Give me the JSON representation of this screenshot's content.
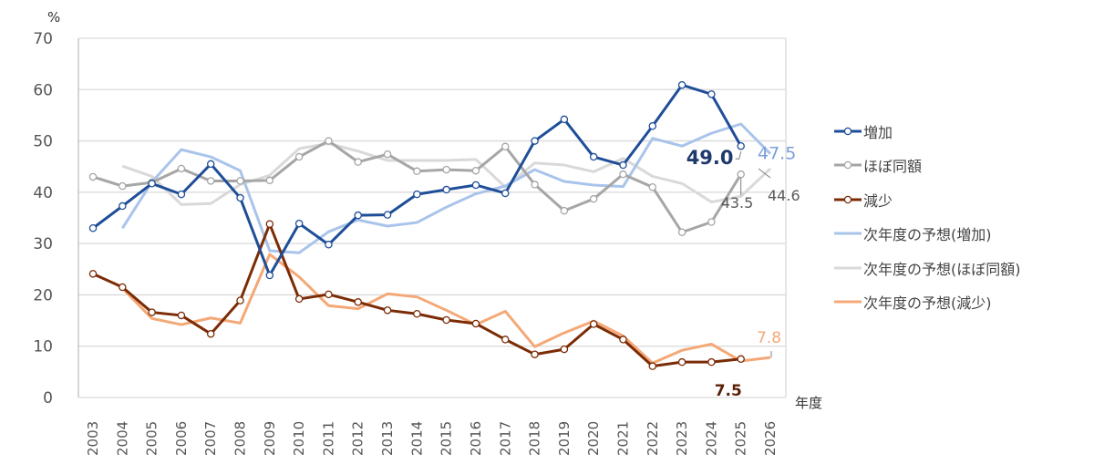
{
  "chart_data": {
    "type": "line",
    "title": "",
    "xlabel": "年度",
    "ylabel": "%",
    "ylim": [
      0,
      70
    ],
    "yticks": [
      "0",
      "10",
      "20",
      "30",
      "40",
      "50",
      "60",
      "70"
    ],
    "categories": [
      "2003",
      "2004",
      "2005",
      "2006",
      "2007",
      "2008",
      "2009",
      "2010",
      "2011",
      "2012",
      "2013",
      "2014",
      "2015",
      "2016",
      "2017",
      "2018",
      "2019",
      "2020",
      "2021",
      "2022",
      "2023",
      "2024",
      "2025",
      "2026"
    ],
    "grid": true,
    "legend_position": "right",
    "series": [
      {
        "name": "増加",
        "color": "#1F4E98",
        "markers": true,
        "width": 3,
        "values": [
          33.0,
          37.3,
          41.7,
          39.6,
          45.5,
          38.9,
          23.8,
          33.9,
          29.8,
          35.5,
          35.6,
          39.6,
          40.5,
          41.4,
          39.8,
          50.0,
          54.2,
          46.9,
          45.3,
          52.9,
          60.9,
          59.1,
          49.0,
          null
        ]
      },
      {
        "name": "ほぼ同額",
        "color": "#A6A6A6",
        "markers": true,
        "width": 3,
        "values": [
          43.0,
          41.2,
          41.9,
          44.6,
          42.2,
          42.2,
          42.3,
          46.9,
          50.0,
          45.9,
          47.4,
          44.1,
          44.4,
          44.2,
          48.9,
          41.5,
          36.4,
          38.7,
          43.5,
          41.0,
          32.2,
          34.2,
          43.5,
          null
        ]
      },
      {
        "name": "減少",
        "color": "#7B2C06",
        "markers": true,
        "width": 3,
        "values": [
          24.1,
          21.5,
          16.6,
          16.0,
          12.4,
          18.9,
          33.8,
          19.2,
          20.1,
          18.6,
          17.0,
          16.3,
          15.1,
          14.4,
          11.3,
          8.4,
          9.4,
          14.3,
          11.3,
          6.1,
          6.9,
          6.9,
          7.5,
          null
        ]
      },
      {
        "name": "次年度の予想(増加)",
        "color": "#A9C4EB",
        "markers": false,
        "width": 3,
        "values": [
          null,
          33.0,
          42.0,
          48.3,
          46.9,
          44.2,
          28.6,
          28.2,
          32.3,
          34.6,
          33.4,
          34.1,
          37.1,
          39.7,
          41.2,
          44.4,
          42.1,
          41.4,
          41.1,
          50.5,
          49.0,
          51.5,
          53.3,
          47.5
        ]
      },
      {
        "name": "次年度の予想(ほぼ同額)",
        "color": "#D9D9D9",
        "markers": false,
        "width": 3,
        "values": [
          null,
          45.1,
          43.1,
          37.6,
          37.8,
          41.5,
          43.3,
          48.5,
          49.5,
          48.0,
          46.2,
          46.2,
          46.2,
          46.4,
          41.0,
          45.7,
          45.3,
          44.0,
          46.6,
          43.1,
          41.7,
          38.1,
          39.2,
          44.6
        ]
      },
      {
        "name": "次年度の予想(減少)",
        "color": "#F4A876",
        "markers": false,
        "width": 3,
        "values": [
          null,
          21.3,
          15.4,
          14.2,
          15.5,
          14.5,
          27.9,
          23.5,
          17.9,
          17.3,
          20.2,
          19.6,
          17.0,
          14.2,
          16.8,
          9.9,
          12.6,
          14.9,
          12.0,
          6.7,
          9.2,
          10.4,
          7.1,
          7.8
        ]
      }
    ],
    "annotations": [
      {
        "text": "49.0",
        "series": "増加",
        "category": "2025",
        "color": "#1F3A6E"
      },
      {
        "text": "47.5",
        "series": "次年度の予想(増加)",
        "category": "2026",
        "color": "#7A9FDB"
      },
      {
        "text": "43.5",
        "series": "ほぼ同額",
        "category": "2025",
        "color": "#595959"
      },
      {
        "text": "44.6",
        "series": "次年度の予想(ほぼ同額)",
        "category": "2026",
        "color": "#595959"
      },
      {
        "text": "7.8",
        "series": "次年度の予想(減少)",
        "category": "2026",
        "color": "#F4A876"
      },
      {
        "text": "7.5",
        "series": "減少",
        "category": "2025",
        "color": "#5A1F04"
      }
    ]
  }
}
